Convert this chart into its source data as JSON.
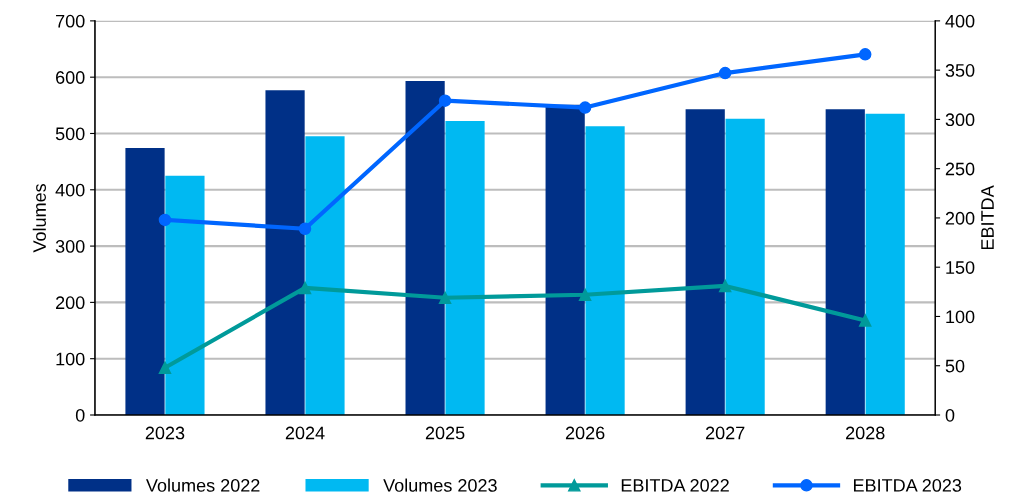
{
  "chart_data": {
    "type": "bar",
    "categories": [
      "2023",
      "2024",
      "2025",
      "2026",
      "2027",
      "2028"
    ],
    "ylabel": "Volumes",
    "y2label": "EBITDA",
    "ylim": [
      0,
      700
    ],
    "yticks": [
      0,
      100,
      200,
      300,
      400,
      500,
      600,
      700
    ],
    "y2lim": [
      0,
      400
    ],
    "y2ticks": [
      0,
      50,
      100,
      150,
      200,
      250,
      300,
      350,
      400
    ],
    "grid": "y",
    "legend": "bottom",
    "series": [
      {
        "name": "Volumes 2022",
        "color": "#003087",
        "values": [
          474,
          577,
          593,
          551,
          543,
          543
        ]
      },
      {
        "name": "Volumes 2023",
        "color": "#00b9f2",
        "values": [
          425,
          495,
          522,
          513,
          526,
          535
        ]
      },
      {
        "name": "EBITDA 2022",
        "type": "line",
        "axis": "y2",
        "color": "#009a9a",
        "marker": "triangle",
        "values": [
          48,
          129,
          119,
          122,
          131,
          96
        ]
      },
      {
        "name": "EBITDA 2023",
        "type": "line",
        "axis": "y2",
        "color": "#0066ff",
        "marker": "circle",
        "values": [
          198,
          189,
          319,
          312,
          347,
          366
        ]
      }
    ]
  }
}
